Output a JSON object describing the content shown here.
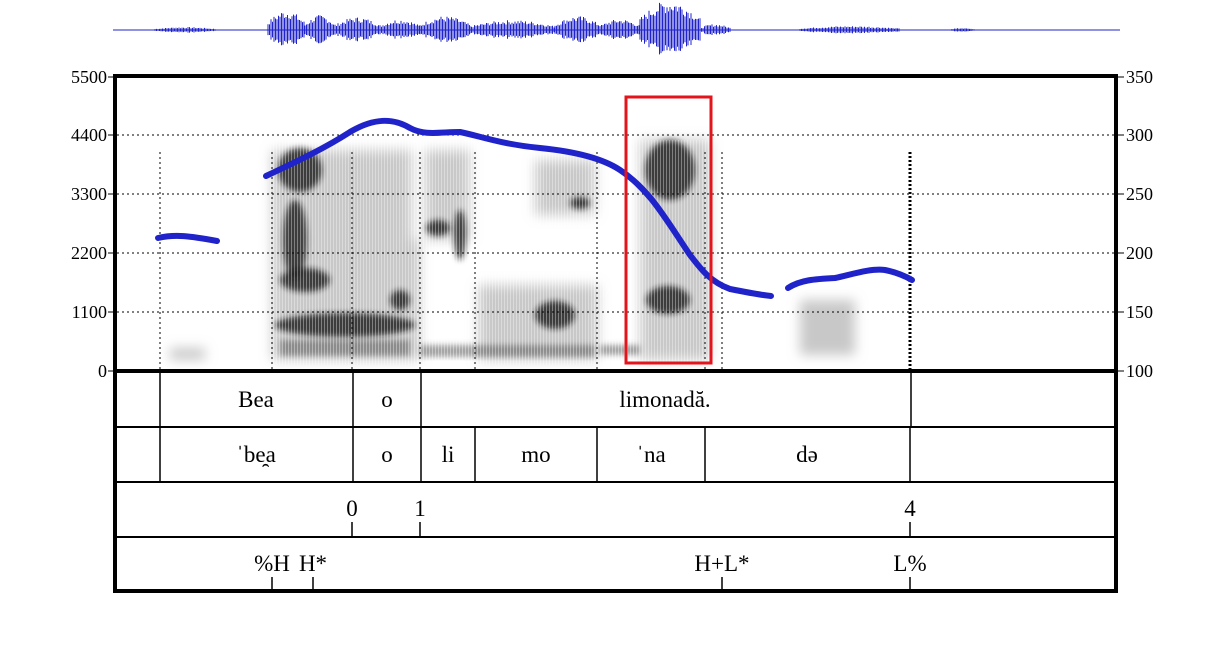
{
  "left_axis": {
    "ticks": [
      "5500",
      "4400",
      "3300",
      "2200",
      "1100",
      "0"
    ]
  },
  "right_axis": {
    "ticks": [
      "350",
      "300",
      "250",
      "200",
      "150",
      "100"
    ]
  },
  "tiers": {
    "words": [
      {
        "id": "bea",
        "text": "Bea"
      },
      {
        "id": "o",
        "text": "o"
      },
      {
        "id": "limonada",
        "text": "limonadă."
      }
    ],
    "syllables": [
      {
        "id": "bea",
        "text": "ˈbe̯a"
      },
      {
        "id": "o",
        "text": "o"
      },
      {
        "id": "li",
        "text": "li"
      },
      {
        "id": "mo",
        "text": "mo"
      },
      {
        "id": "na",
        "text": "ˈna"
      },
      {
        "id": "de",
        "text": "də"
      }
    ],
    "break_indices": [
      {
        "id": "0",
        "text": "0"
      },
      {
        "id": "1",
        "text": "1"
      },
      {
        "id": "4",
        "text": "4"
      }
    ],
    "tones": [
      {
        "id": "pct-h",
        "text": "%H"
      },
      {
        "id": "h-star",
        "text": "H*"
      },
      {
        "id": "h-l-star",
        "text": "H+L*"
      },
      {
        "id": "l-pct",
        "text": "L%"
      }
    ]
  },
  "colors": {
    "pitch_track": "#1f23c9",
    "waveform": "#1f23c9",
    "highlight_box": "#e3141b",
    "spectrogram": "#000000",
    "frame": "#000000"
  }
}
